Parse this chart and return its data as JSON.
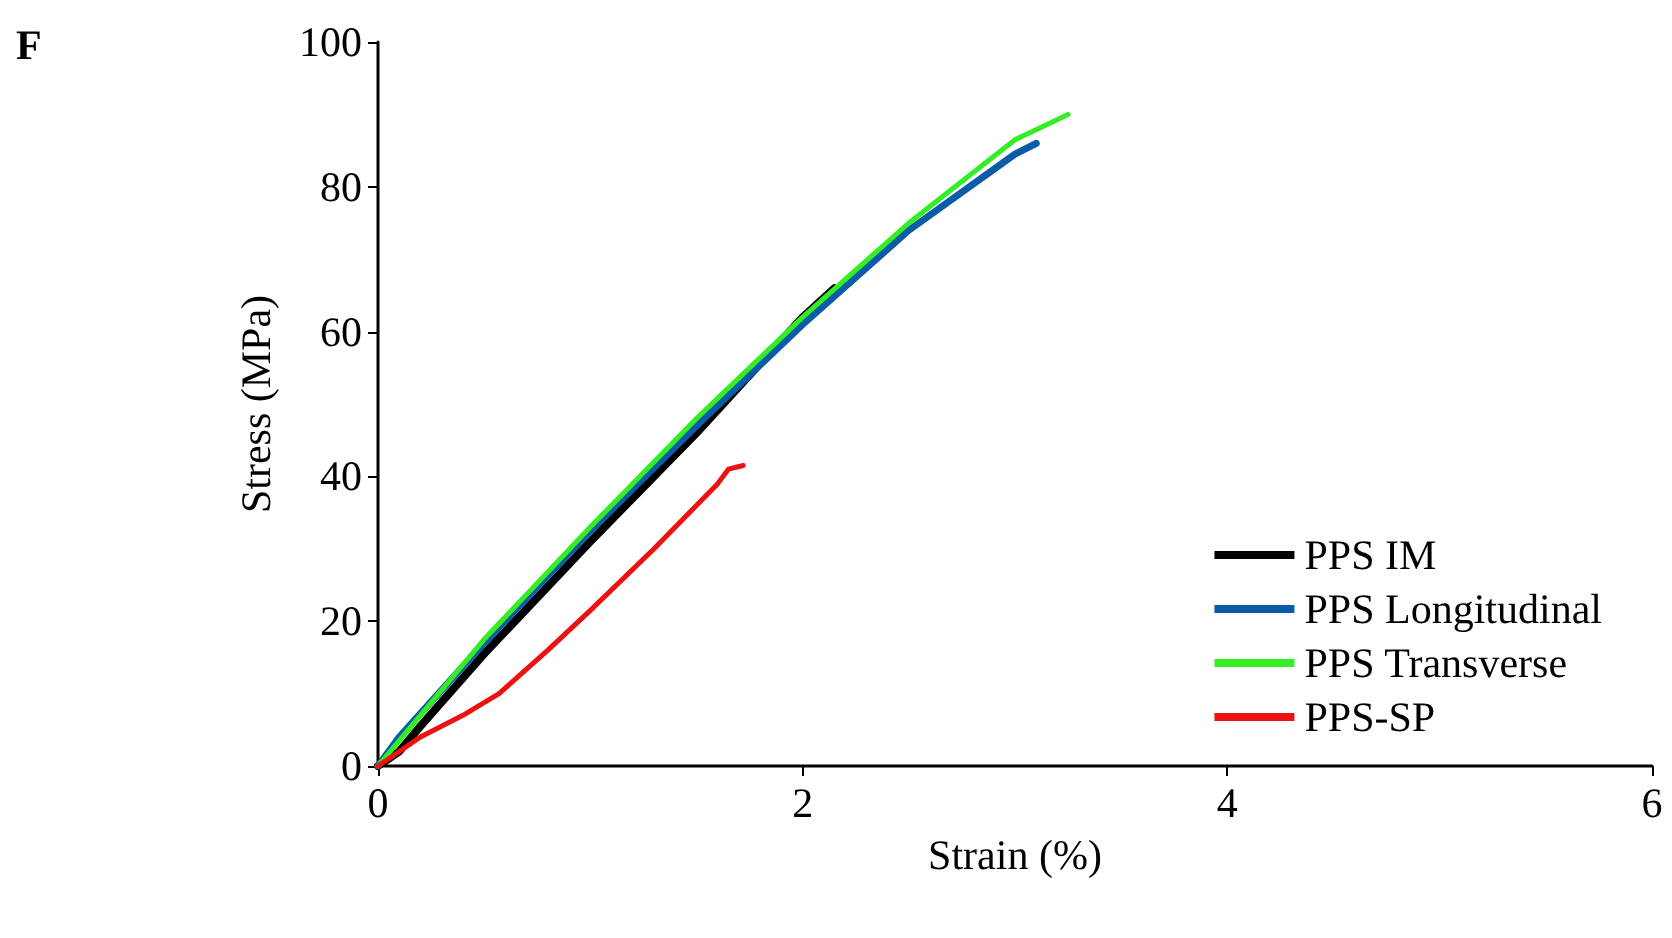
{
  "chart_data": {
    "type": "line",
    "xlabel": "Strain (%)",
    "ylabel": "Stress (MPa)",
    "annotations": [
      "F"
    ],
    "xlim": [
      0,
      6
    ],
    "xticks": [
      0,
      2,
      4,
      6
    ],
    "ylim": [
      0,
      100
    ],
    "yticks": [
      0,
      20,
      40,
      60,
      80,
      100
    ],
    "grid": false,
    "legend": "bottom right",
    "marker": "none",
    "line_style": "solid",
    "series": [
      {
        "name": "PPS IM",
        "color": "#000000",
        "x": [
          0,
          0.1,
          0.2,
          0.5,
          1,
          1.5,
          2,
          2.15
        ],
        "values": [
          0,
          2,
          5.5,
          15.5,
          31,
          46,
          62,
          66
        ]
      },
      {
        "name": "PPS Longitudinal",
        "color": "#0a5ca8",
        "x": [
          0,
          0.1,
          0.5,
          1,
          1.5,
          2,
          2.5,
          3,
          3.1
        ],
        "values": [
          0,
          4,
          17,
          32.5,
          47,
          61,
          74,
          84.5,
          86
        ]
      },
      {
        "name": "PPS Transverse",
        "color": "#33ee22",
        "x": [
          0,
          0.1,
          0.5,
          1,
          1.5,
          2,
          2.5,
          3,
          3.25
        ],
        "values": [
          0,
          3.5,
          17.5,
          33,
          48,
          62,
          75,
          86.5,
          90
        ]
      },
      {
        "name": "PPS-SP",
        "color": "#ee1111",
        "x": [
          0,
          0.2,
          0.4,
          0.57,
          0.8,
          1,
          1.3,
          1.6,
          1.65,
          1.72
        ],
        "values": [
          0,
          4,
          7,
          10,
          16,
          21.5,
          30,
          39,
          41,
          41.5
        ]
      }
    ]
  }
}
